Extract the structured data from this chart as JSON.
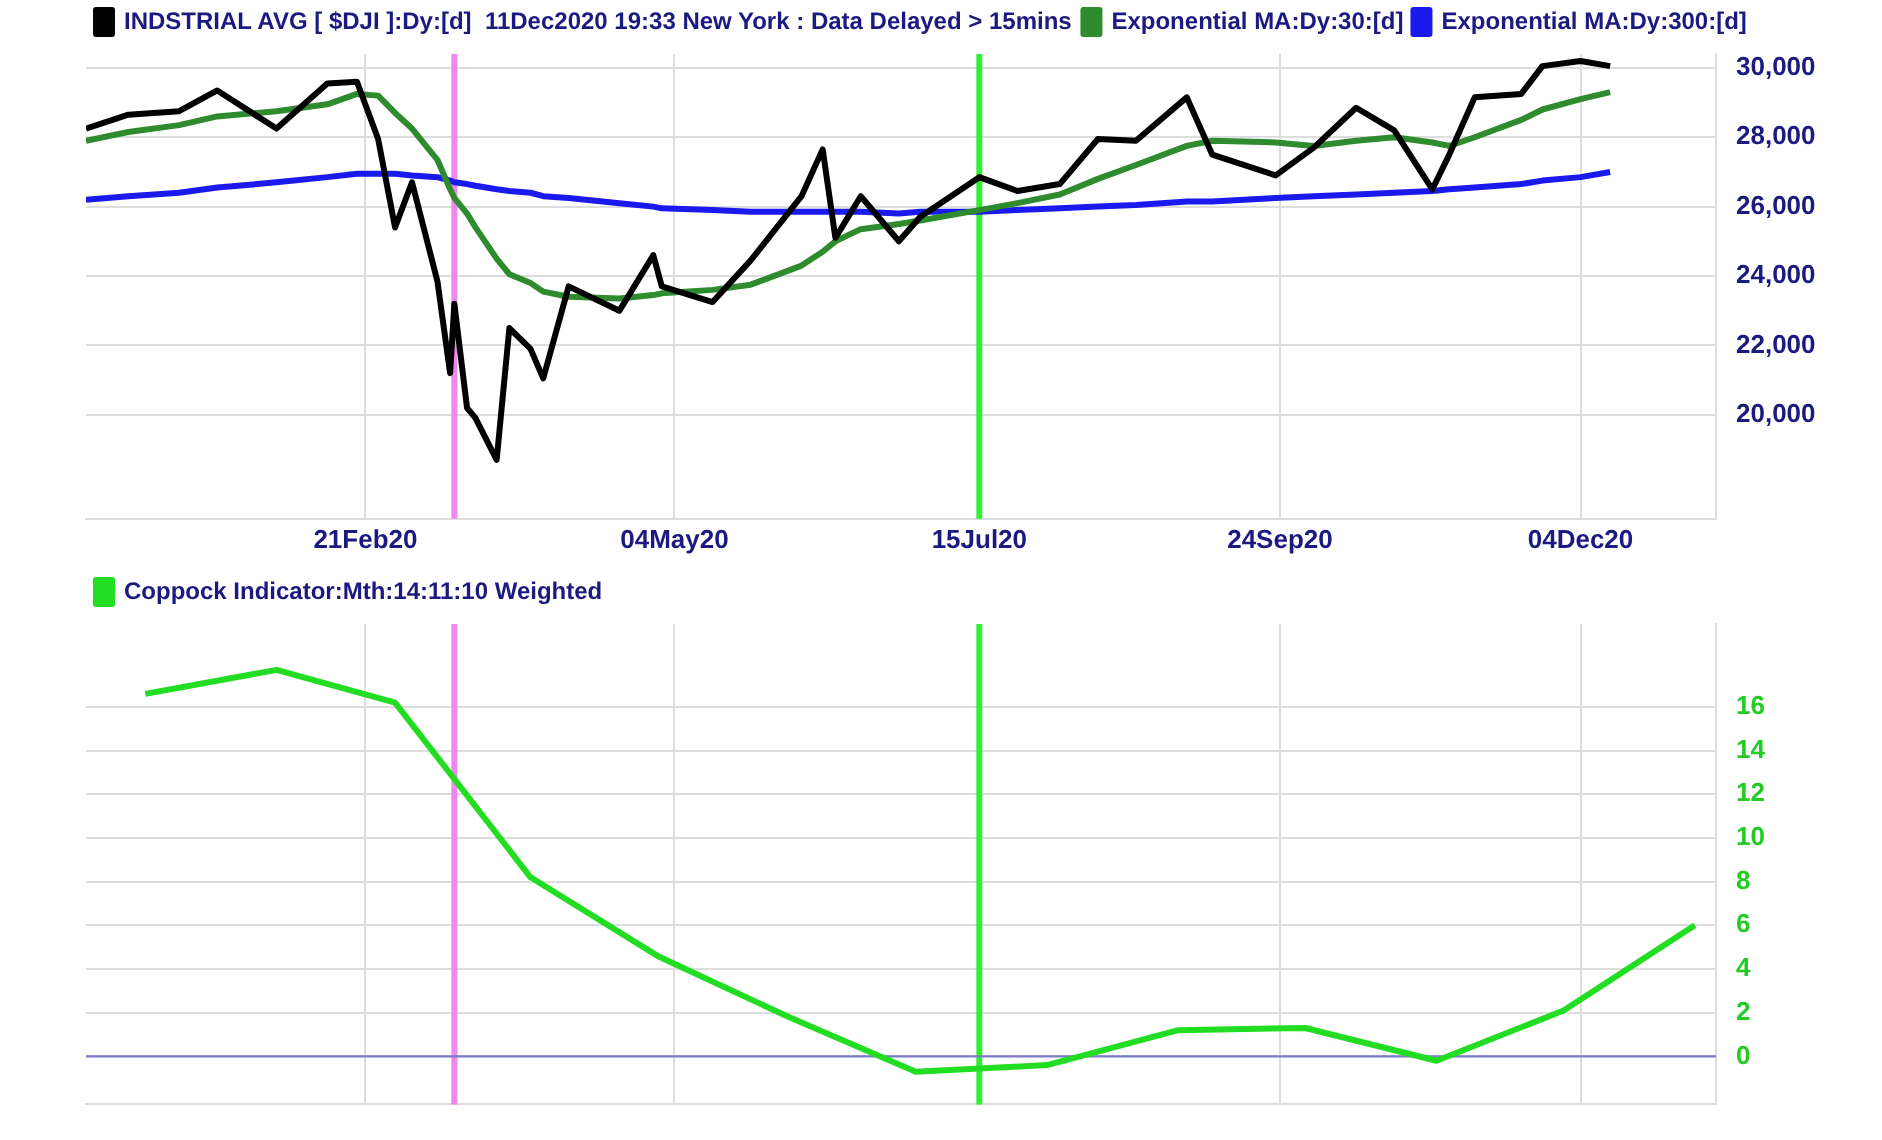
{
  "chart_data": [
    {
      "type": "line",
      "x": [
        "2019-12-17",
        "2019-12-27",
        "2020-01-08",
        "2020-01-17",
        "2020-01-31",
        "2020-02-12",
        "2020-02-19",
        "2020-02-24",
        "2020-02-28",
        "2020-03-03",
        "2020-03-09",
        "2020-03-12",
        "2020-03-13",
        "2020-03-16",
        "2020-03-18",
        "2020-03-23",
        "2020-03-26",
        "2020-03-31",
        "2020-04-03",
        "2020-04-09",
        "2020-04-21",
        "2020-04-29",
        "2020-05-01",
        "2020-05-13",
        "2020-05-22",
        "2020-06-03",
        "2020-06-08",
        "2020-06-11",
        "2020-06-17",
        "2020-06-26",
        "2020-07-01",
        "2020-07-15",
        "2020-07-24",
        "2020-08-03",
        "2020-08-12",
        "2020-08-21",
        "2020-09-02",
        "2020-09-08",
        "2020-09-23",
        "2020-10-02",
        "2020-10-12",
        "2020-10-21",
        "2020-10-30",
        "2020-11-03",
        "2020-11-09",
        "2020-11-20",
        "2020-11-25",
        "2020-12-04",
        "2020-12-11"
      ],
      "series": [
        {
          "name": "INDSTRIAL AVG [ $DJI ]:Dy:[d]  11Dec2020 19:33 New York : Data Delayed > 15mins",
          "color": "#000000",
          "values": [
            28250,
            28650,
            28750,
            29350,
            28250,
            29550,
            29600,
            27950,
            25400,
            26700,
            23850,
            21200,
            23200,
            20200,
            19900,
            18700,
            22500,
            21900,
            21050,
            23700,
            23000,
            24600,
            23700,
            23250,
            24450,
            26300,
            27650,
            25100,
            26300,
            25000,
            25700,
            26850,
            26450,
            26650,
            27950,
            27900,
            29150,
            27500,
            26900,
            27700,
            28850,
            28200,
            26500,
            27500,
            29150,
            29250,
            30050,
            30200,
            30050
          ]
        },
        {
          "name": "Exponential MA:Dy:30:[d]",
          "color": "#2e8b2e",
          "values": [
            27900,
            28150,
            28350,
            28600,
            28750,
            28950,
            29250,
            29200,
            28700,
            28250,
            27350,
            26500,
            26250,
            25800,
            25400,
            24500,
            24050,
            23800,
            23550,
            23400,
            23350,
            23450,
            23500,
            23600,
            23750,
            24300,
            24700,
            25000,
            25350,
            25500,
            25600,
            25900,
            26100,
            26350,
            26800,
            27200,
            27750,
            27900,
            27850,
            27750,
            27900,
            28000,
            27850,
            27750,
            28000,
            28500,
            28800,
            29100,
            29300
          ]
        },
        {
          "name": "Exponential MA:Dy:300:[d]",
          "color": "#1a1aee",
          "values": [
            26200,
            26300,
            26400,
            26550,
            26700,
            26850,
            26950,
            26950,
            26950,
            26900,
            26850,
            26750,
            26700,
            26650,
            26600,
            26500,
            26450,
            26400,
            26300,
            26250,
            26100,
            26000,
            25950,
            25900,
            25850,
            25850,
            25850,
            25850,
            25850,
            25800,
            25850,
            25850,
            25900,
            25950,
            26000,
            26050,
            26150,
            26150,
            26250,
            26300,
            26350,
            26400,
            26450,
            26500,
            26550,
            26650,
            26750,
            26850,
            27000
          ]
        }
      ],
      "xlim": [
        "2019-12-17",
        "2021-01-05"
      ],
      "xticks": [
        {
          "value": "2020-02-21",
          "label": "21Feb20"
        },
        {
          "value": "2020-05-04",
          "label": "04May20"
        },
        {
          "value": "2020-07-15",
          "label": "15Jul20"
        },
        {
          "value": "2020-09-24",
          "label": "24Sep20"
        },
        {
          "value": "2020-12-04",
          "label": "04Dec20"
        }
      ],
      "ylim": [
        17000,
        30400
      ],
      "yticks": [
        {
          "value": 20000,
          "label": "20,000"
        },
        {
          "value": 22000,
          "label": "22,000"
        },
        {
          "value": 24000,
          "label": "24,000"
        },
        {
          "value": 26000,
          "label": "26,000"
        },
        {
          "value": 28000,
          "label": "28,000"
        },
        {
          "value": 30000,
          "label": "30,000"
        }
      ],
      "ref_lines": [
        {
          "axis": "x",
          "value": "2020-03-13",
          "color": "#ee88ee"
        },
        {
          "axis": "x",
          "value": "2020-07-15",
          "color": "#33ee33"
        }
      ],
      "grid": true,
      "legend": "top left",
      "marker": "none",
      "line_style": "solid"
    },
    {
      "type": "line",
      "x": [
        "2019-12-31",
        "2020-01-31",
        "2020-02-28",
        "2020-03-31",
        "2020-04-30",
        "2020-05-31",
        "2020-06-30",
        "2020-07-31",
        "2020-08-31",
        "2020-09-30",
        "2020-10-31",
        "2020-11-30",
        "2020-12-31"
      ],
      "series": [
        {
          "name": "Coppock Indicator:Mth:14:11:10 Weighted",
          "color": "#22dd22",
          "values": [
            16.6,
            17.7,
            16.2,
            8.2,
            4.6,
            1.8,
            -0.7,
            -0.4,
            1.2,
            1.3,
            -0.2,
            2.1,
            6.0
          ]
        }
      ],
      "xlim": [
        "2019-12-17",
        "2021-01-05"
      ],
      "xticks": [
        {
          "value": "2020-02-21",
          "label": null
        },
        {
          "value": "2020-05-04",
          "label": null
        },
        {
          "value": "2020-07-15",
          "label": null
        },
        {
          "value": "2020-09-24",
          "label": null
        },
        {
          "value": "2020-12-04",
          "label": null
        }
      ],
      "ylim": [
        -2.2,
        19.8
      ],
      "yticks": [
        0,
        2,
        4,
        6,
        8,
        10,
        12,
        14,
        16
      ],
      "ref_lines": [
        {
          "axis": "x",
          "value": "2020-03-13",
          "color": "#ee88ee"
        },
        {
          "axis": "x",
          "value": "2020-07-15",
          "color": "#33ee33"
        },
        {
          "axis": "y",
          "value": 0,
          "color": "#7b7bc8"
        }
      ],
      "grid": true,
      "legend": "top left",
      "marker": "none",
      "line_style": "solid",
      "tick_labels": "y"
    }
  ]
}
